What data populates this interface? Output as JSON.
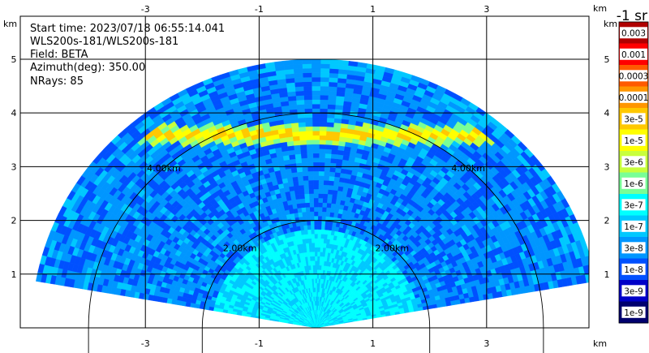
{
  "info": {
    "start_time": "Start time: 2023/07/18 06:55:14.041",
    "site": "WLS200s-181/WLS200s-181",
    "field": "Field: BETA",
    "azimuth": "Azimuth(deg): 350.00",
    "nrays": "NRays: 85"
  },
  "chart_data": {
    "type": "heatmap",
    "title": "",
    "x_unit": "km",
    "y_unit": "km",
    "xlim": [
      -5.2,
      4.8
    ],
    "ylim": [
      0,
      5.8
    ],
    "x_ticks": [
      -3,
      -1,
      1,
      3
    ],
    "x_tick_labels": [
      "-3",
      "-1",
      "1",
      "3"
    ],
    "y_ticks": [
      1,
      2,
      3,
      4,
      5
    ],
    "y_tick_labels": [
      "1",
      "2",
      "3",
      "4",
      "5"
    ],
    "grid": true,
    "range_rings_km": [
      2.0,
      4.0
    ],
    "range_ring_labels": [
      "2.00km",
      "4.00km"
    ],
    "max_range_km": 5.0,
    "colorbar": {
      "unit_label": "-1 sr",
      "tick_labels": [
        "0.003",
        "0.001",
        "0.0003",
        "0.0001",
        "3e-5",
        "1e-5",
        "3e-6",
        "1e-6",
        "3e-7",
        "1e-7",
        "3e-8",
        "1e-8",
        "3e-9",
        "1e-9"
      ],
      "colors": [
        "#b00000",
        "#ff0000",
        "#ff5a00",
        "#ff9600",
        "#ffc800",
        "#ffff00",
        "#c8ff3c",
        "#78ff96",
        "#00ffff",
        "#00c8ff",
        "#0096ff",
        "#0050ff",
        "#0000c8",
        "#00006e"
      ]
    },
    "sector_angles_deg": [
      170,
      10
    ],
    "features": [
      {
        "type": "aerosol_layer",
        "height_km": 3.6,
        "level_index": 4
      },
      {
        "type": "near_field",
        "range_km": 1.8,
        "level_index": 8
      },
      {
        "type": "background",
        "level_index": 10
      }
    ]
  }
}
